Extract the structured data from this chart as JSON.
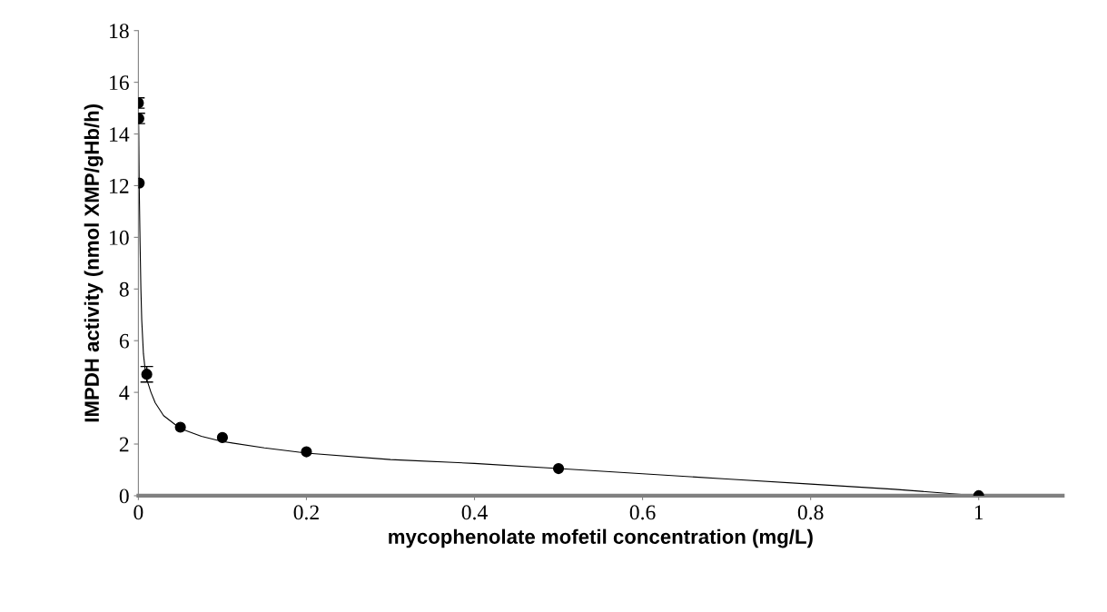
{
  "chart_data": {
    "type": "scatter",
    "xlabel": "mycophenolate mofetil concentration (mg/L)",
    "ylabel": "IMPDH activity (nmol XMP/gHb/h)",
    "series": [
      {
        "type": "line",
        "color": "#000000",
        "marker": "none",
        "x": [
          0,
          0.0005,
          0.001,
          0.002,
          0.003,
          0.004,
          0.006,
          0.008,
          0.01,
          0.015,
          0.02,
          0.03,
          0.05,
          0.075,
          0.1,
          0.15,
          0.2,
          0.3,
          0.4,
          0.5,
          0.6,
          0.7,
          0.8,
          0.9,
          1
        ],
        "values": [
          15.2,
          14.0,
          12.0,
          9.8,
          8.0,
          6.8,
          5.5,
          4.9,
          4.5,
          4.0,
          3.6,
          3.1,
          2.6,
          2.3,
          2.1,
          1.85,
          1.65,
          1.4,
          1.25,
          1.05,
          0.85,
          0.65,
          0.45,
          0.25,
          0
        ]
      },
      {
        "color": "#000000",
        "marker": "circle",
        "x": [
          0,
          0.0005,
          0.001,
          0.01,
          0.05,
          0.1,
          0.2,
          0.5,
          1
        ],
        "values": [
          15.2,
          14.6,
          12.1,
          4.7,
          2.65,
          2.25,
          1.7,
          1.05,
          0
        ],
        "errors": [
          0.2,
          0.2,
          null,
          0.3,
          null,
          null,
          null,
          null,
          null
        ]
      }
    ],
    "xlim": [
      0,
      1.1
    ],
    "xticks": [
      0,
      0.2,
      0.4,
      0.6,
      0.8,
      1
    ],
    "ylim": [
      0,
      18
    ],
    "yticks": [
      0,
      2,
      4,
      6,
      8,
      10,
      12,
      14,
      16,
      18
    ],
    "grid": false,
    "legend": false
  }
}
